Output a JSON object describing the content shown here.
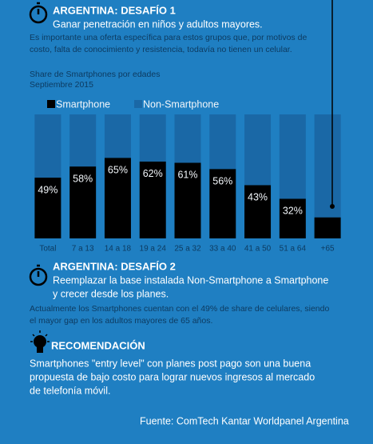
{
  "header": {
    "title": "ARGENTINA: DESAFÍO 1",
    "subtitle": "Ganar penetración en niños y adultos mayores.",
    "text": [
      "Es importante una oferta específica para estos grupos que, por motivos de",
      "costo, falta de conocimiento y resistencia, todavía no tienen un celular."
    ]
  },
  "chart_data": {
    "type": "stacked-bar",
    "title": "Share de Smartphones por edades",
    "subtitle": "Septiembre 2015",
    "categories": [
      "Total",
      "7 a 13",
      "14 a 18",
      "19 a 24",
      "25 a 32",
      "33 a 40",
      "41 a 50",
      "51 a 64",
      "+65"
    ],
    "series": [
      {
        "name": "Smartphone",
        "color": "#000000",
        "values": [
          49,
          58,
          65,
          62,
          61,
          56,
          43,
          32,
          17
        ],
        "value_labels": [
          "49%",
          "58%",
          "65%",
          "62%",
          "61%",
          "56%",
          "43%",
          "32%",
          null
        ]
      },
      {
        "name": "Non-Smartphone",
        "color": "#1a68a6",
        "values": [
          51,
          42,
          35,
          38,
          39,
          44,
          57,
          68,
          83
        ]
      }
    ],
    "ylim": [
      0,
      100
    ],
    "legend": "top-left"
  },
  "challenge2": {
    "title": "ARGENTINA: DESAFÍO 2",
    "subtitle": [
      "Reemplazar la base instalada Non-Smartphone a Smartphone",
      "y crecer desde los planes."
    ],
    "text": [
      "Actualmente los Smartphones cuentan con el 49% de share de celulares, siendo",
      "el mayor gap en los adultos mayores de 65 años."
    ]
  },
  "recommendation": {
    "title": "RECOMENDACIÓN",
    "text": [
      "Smartphones \"entry level\" con planes post pago son una buena",
      "propuesta de bajo costo para lograr nuevos ingresos al mercado",
      "de telefonía móvil."
    ]
  },
  "source": "Fuente: ComTech Kantar Worldpanel Argentina"
}
